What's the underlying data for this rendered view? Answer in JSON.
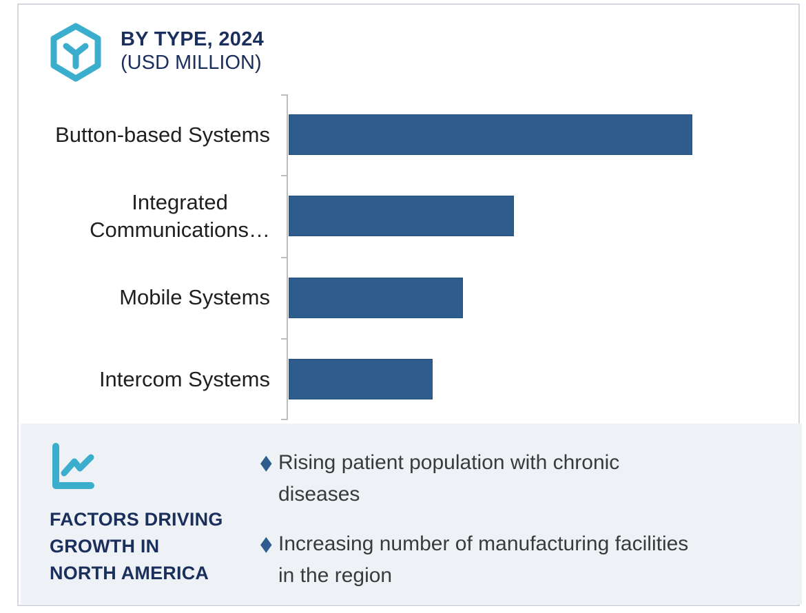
{
  "header": {
    "title_line1": "BY TYPE, 2024",
    "title_line2": "(USD MILLION)",
    "logo_icon": "hexagon-y-logo-icon",
    "title_color": "#1a2f5c",
    "accent_teal": "#3badcd"
  },
  "chart_data": {
    "type": "bar",
    "orientation": "horizontal",
    "title": "BY TYPE, 2024 (USD MILLION)",
    "categories": [
      "Button-based Systems",
      "Integrated Communications…",
      "Mobile Systems",
      "Intercom Systems"
    ],
    "display_labels": [
      "Button-based Systems",
      "Integrated\nCommunications…",
      "Mobile Systems",
      "Intercom Systems"
    ],
    "values_pct_of_max": [
      100,
      55.8,
      43.2,
      35.7
    ],
    "value_axis_visible": false,
    "value_axis_note": "no numeric tick labels shown; values estimated relative to longest bar",
    "bar_color": "#2e5c8d",
    "axis_color": "#bdbdbd",
    "legend": "none",
    "gridlines": false
  },
  "factors_panel": {
    "background": "#eef1f6",
    "icon": "line-chart-icon",
    "heading_lines": [
      "FACTORS DRIVING",
      "GROWTH IN",
      "NORTH AMERICA"
    ],
    "bullet_color": "#2e5c8d",
    "bullet_glyph": "◆",
    "bullets": [
      "Rising patient population with chronic\ndiseases",
      "Increasing number of manufacturing facilities\nin the region"
    ]
  }
}
